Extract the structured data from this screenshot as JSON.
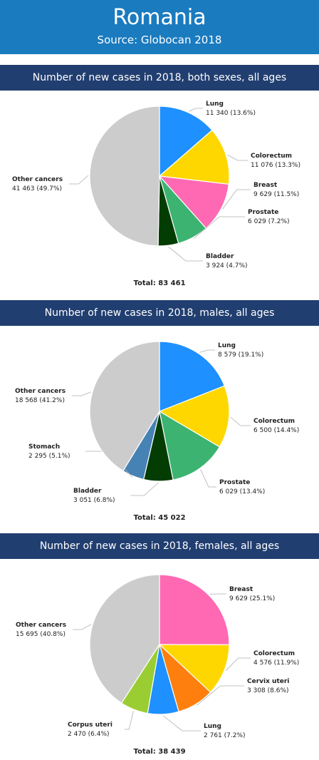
{
  "header": {
    "title": "Romania",
    "subtitle": "Source: Globocan 2018"
  },
  "chart_data": [
    {
      "type": "pie",
      "title": "Number of new cases in 2018, both sexes, all ages",
      "total_label": "Total: 83 461",
      "slices": [
        {
          "name": "Lung",
          "value": 11340,
          "value_text": "11 340 (13.6%)",
          "color": "#1e90ff"
        },
        {
          "name": "Colorectum",
          "value": 11076,
          "value_text": "11 076 (13.3%)",
          "color": "#ffd700"
        },
        {
          "name": "Breast",
          "value": 9629,
          "value_text": "9 629 (11.5%)",
          "color": "#ff69b4"
        },
        {
          "name": "Prostate",
          "value": 6029,
          "value_text": "6 029 (7.2%)",
          "color": "#3cb371"
        },
        {
          "name": "Bladder",
          "value": 3924,
          "value_text": "3 924 (4.7%)",
          "color": "#043d04"
        },
        {
          "name": "Other cancers",
          "value": 41463,
          "value_text": "41 463 (49.7%)",
          "color": "#cccccc"
        }
      ]
    },
    {
      "type": "pie",
      "title": "Number of new cases in 2018, males, all ages",
      "total_label": "Total: 45 022",
      "slices": [
        {
          "name": "Lung",
          "value": 8579,
          "value_text": "8 579 (19.1%)",
          "color": "#1e90ff"
        },
        {
          "name": "Colorectum",
          "value": 6500,
          "value_text": "6 500 (14.4%)",
          "color": "#ffd700"
        },
        {
          "name": "Prostate",
          "value": 6029,
          "value_text": "6 029 (13.4%)",
          "color": "#3cb371"
        },
        {
          "name": "Bladder",
          "value": 3051,
          "value_text": "3 051 (6.8%)",
          "color": "#043d04"
        },
        {
          "name": "Stomach",
          "value": 2295,
          "value_text": "2 295 (5.1%)",
          "color": "#4682b4"
        },
        {
          "name": "Other cancers",
          "value": 18568,
          "value_text": "18 568 (41.2%)",
          "color": "#cccccc"
        }
      ]
    },
    {
      "type": "pie",
      "title": "Number of new cases in 2018, females, all ages",
      "total_label": "Total: 38 439",
      "slices": [
        {
          "name": "Breast",
          "value": 9629,
          "value_text": "9 629 (25.1%)",
          "color": "#ff69b4"
        },
        {
          "name": "Colorectum",
          "value": 4576,
          "value_text": "4 576 (11.9%)",
          "color": "#ffd700"
        },
        {
          "name": "Cervix uteri",
          "value": 3308,
          "value_text": "3 308 (8.6%)",
          "color": "#ff7f0e"
        },
        {
          "name": "Lung",
          "value": 2761,
          "value_text": "2 761 (7.2%)",
          "color": "#1e90ff"
        },
        {
          "name": "Corpus uteri",
          "value": 2470,
          "value_text": "2 470 (6.4%)",
          "color": "#9acd32"
        },
        {
          "name": "Other cancers",
          "value": 15695,
          "value_text": "15 695 (40.8%)",
          "color": "#cccccc"
        }
      ]
    }
  ]
}
